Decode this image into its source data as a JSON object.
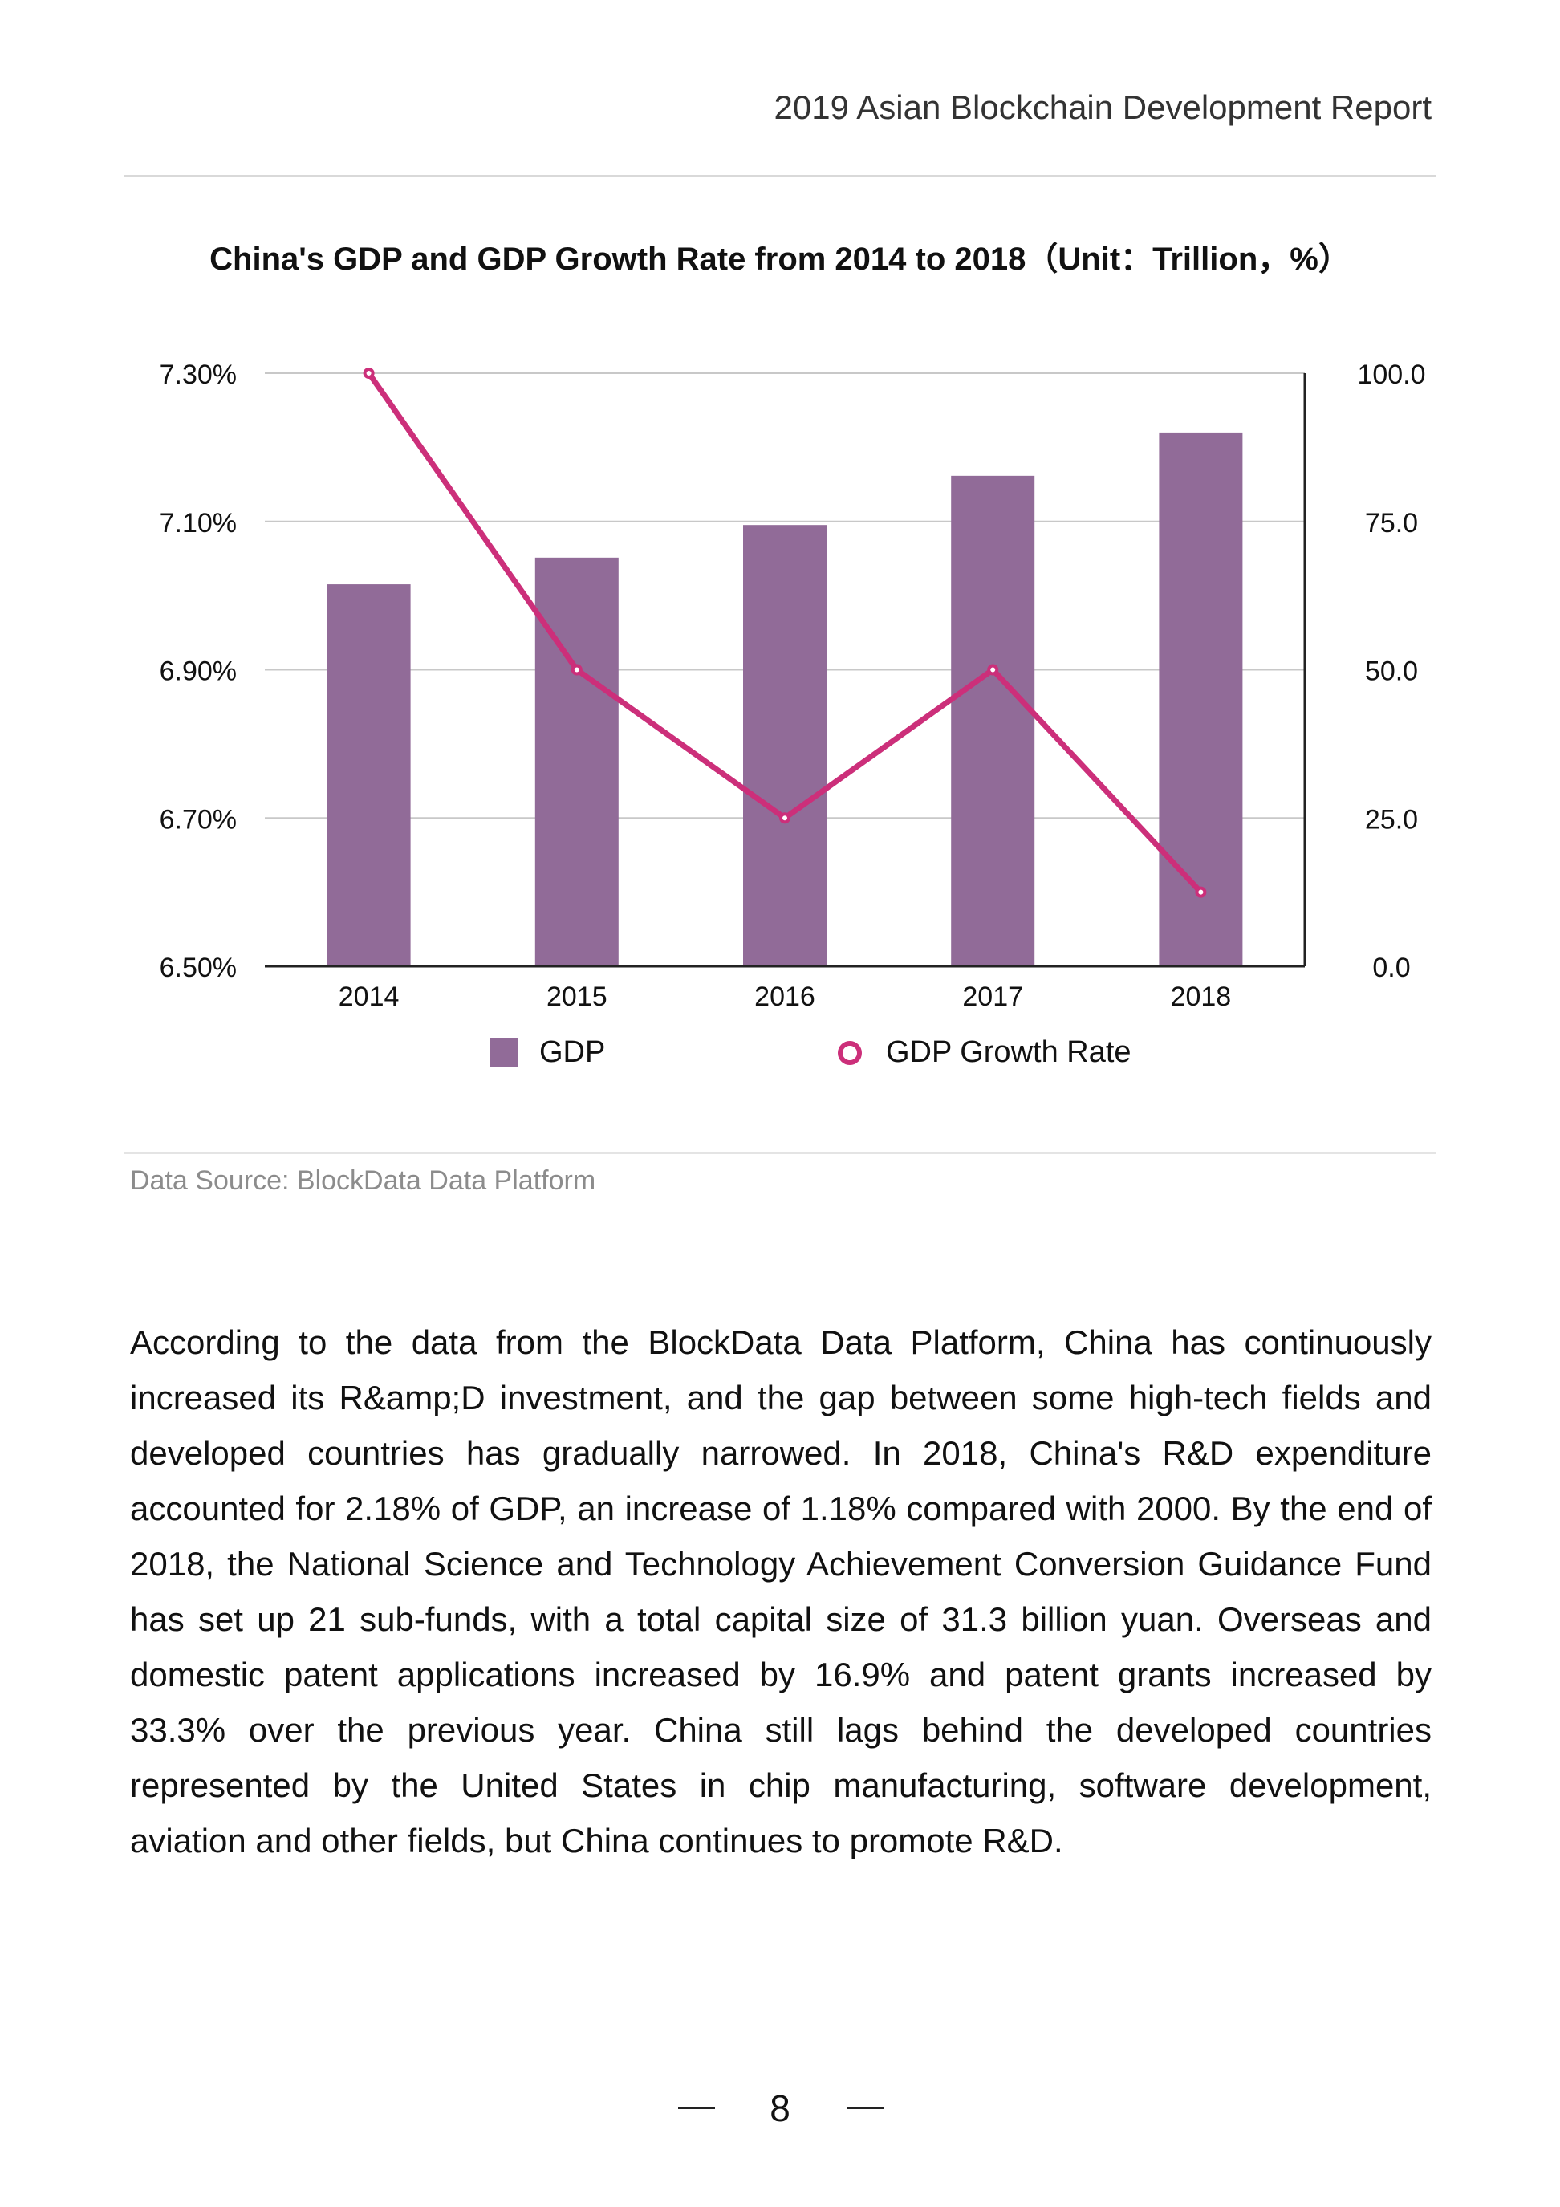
{
  "header": {
    "title": "2019 Asian Blockchain Development Report"
  },
  "chart_title": "China's GDP and GDP Growth Rate from 2014 to 2018（Unit：Trillion，%）",
  "chart_data": {
    "type": "bar+line",
    "title": "China's GDP and GDP Growth Rate from 2014 to 2018（Unit：Trillion，%）",
    "categories": [
      "2014",
      "2015",
      "2016",
      "2017",
      "2018"
    ],
    "series": [
      {
        "name": "GDP",
        "type": "bar",
        "axis": "right",
        "values": [
          64.4,
          68.9,
          74.4,
          82.7,
          90.0
        ]
      },
      {
        "name": "GDP Growth Rate",
        "type": "line",
        "axis": "left",
        "values": [
          7.3,
          6.9,
          6.7,
          6.9,
          6.6
        ]
      }
    ],
    "left_axis": {
      "ticks": [
        "7.30%",
        "7.10%",
        "6.90%",
        "6.70%",
        "6.50%"
      ],
      "range": [
        6.5,
        7.3
      ]
    },
    "right_axis": {
      "ticks": [
        "100.0",
        "75.0",
        "50.0",
        "25.0",
        "0.0"
      ],
      "range": [
        0,
        100
      ]
    },
    "grid": true,
    "legend": "bottom",
    "colors": {
      "bar": "#916b98",
      "line": "#cc2f7a"
    }
  },
  "legend": {
    "gdp": "GDP",
    "rate": "GDP Growth Rate"
  },
  "source": "Data Source: BlockData Data Platform",
  "body": "According to the data from the BlockData Data Platform, China has continuously increased its R&amp;D investment, and the gap between some high-tech fields and developed countries has gradually narrowed. In 2018, China's R&D expenditure accounted for 2.18% of GDP, an increase of 1.18% compared with 2000. By the end of 2018, the National Science and Technology Achievement Conversion Guidance Fund has set up 21 sub-funds, with a total capital size of 31.3 billion yuan. Overseas and domestic patent applications increased by 16.9% and patent grants increased by 33.3% over the previous year. China still lags behind the developed countries represented by the United States in chip manufacturing, software development, aviation and other fields, but China continues to promote R&D.",
  "footer": {
    "page_number": "8"
  }
}
